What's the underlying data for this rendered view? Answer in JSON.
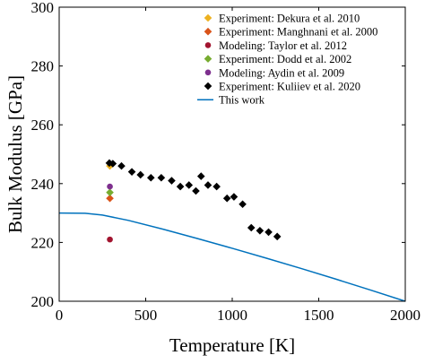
{
  "chart_data": {
    "type": "scatter",
    "xlabel": "Temperature [K]",
    "ylabel": "Bulk Modulus [GPa]",
    "xlim": [
      0,
      2000
    ],
    "ylim": [
      200,
      300
    ],
    "xticks": [
      0,
      500,
      1000,
      1500,
      2000
    ],
    "yticks": [
      200,
      220,
      240,
      260,
      280,
      300
    ],
    "grid": false,
    "legend_position": "top-right",
    "series": [
      {
        "name": "Experiment: Dekura et al. 2010",
        "kind": "scatter",
        "marker": "diamond",
        "color": "#EDB120",
        "x": [
          293
        ],
        "y": [
          246
        ]
      },
      {
        "name": "Experiment: Manghnani et al. 2000",
        "kind": "scatter",
        "marker": "diamond",
        "color": "#D95319",
        "x": [
          293
        ],
        "y": [
          235
        ]
      },
      {
        "name": "Modeling: Taylor et al. 2012",
        "kind": "scatter",
        "marker": "circle",
        "color": "#A2142F",
        "x": [
          293
        ],
        "y": [
          221
        ]
      },
      {
        "name": "Experiment: Dodd et al. 2002",
        "kind": "scatter",
        "marker": "diamond",
        "color": "#77AC30",
        "x": [
          293
        ],
        "y": [
          237
        ]
      },
      {
        "name": "Modeling: Aydin et al. 2009",
        "kind": "scatter",
        "marker": "circle",
        "color": "#7E2F8E",
        "x": [
          293
        ],
        "y": [
          239
        ]
      },
      {
        "name": "Experiment: Kuliiev et al. 2020",
        "kind": "scatter",
        "marker": "diamond",
        "color": "#000000",
        "x": [
          290,
          310,
          360,
          420,
          470,
          530,
          590,
          650,
          700,
          750,
          790,
          820,
          860,
          910,
          970,
          1010,
          1060,
          1110,
          1160,
          1210,
          1260
        ],
        "y": [
          247,
          246.8,
          246,
          244,
          243,
          242,
          242,
          241,
          239,
          239.5,
          237.5,
          242.5,
          239.5,
          239,
          235,
          235.5,
          233,
          225,
          224,
          223.5,
          222
        ]
      },
      {
        "name": "This work",
        "kind": "line",
        "color": "#0072BD",
        "x": [
          0,
          150,
          250,
          400,
          600,
          800,
          1000,
          1200,
          1400,
          1600,
          1800,
          2000
        ],
        "y": [
          230,
          229.9,
          229.3,
          227.5,
          224.5,
          221.3,
          218,
          214.6,
          211.1,
          207.5,
          203.8,
          200
        ]
      }
    ]
  }
}
